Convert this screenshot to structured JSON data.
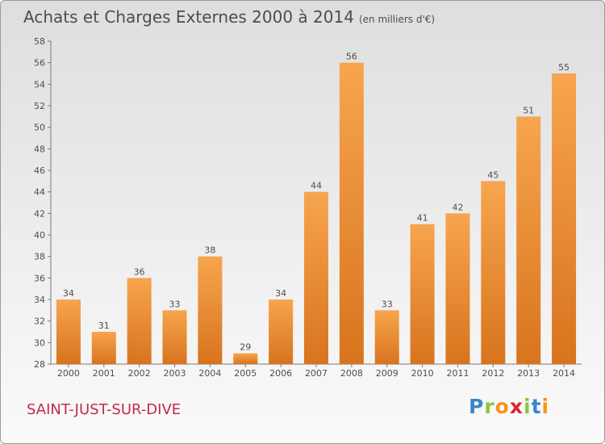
{
  "title": "Achats et Charges Externes 2000 à 2014",
  "subtitle": "(en milliers d'€)",
  "commune": "SAINT-JUST-SUR-DIVE",
  "logo": {
    "letters": [
      "P",
      "r",
      "o",
      "x",
      "i",
      "t",
      "i"
    ],
    "colors": [
      "#3a86c8",
      "#8cc63f",
      "#f7941d",
      "#d9262e",
      "#8cc63f",
      "#3a86c8",
      "#f7941d"
    ]
  },
  "colors": {
    "bar_top": "#f7a54e",
    "bar_bottom": "#d8741e",
    "title": "#4d4d4d",
    "commune": "#c42a4a"
  },
  "chart_data": {
    "type": "bar",
    "categories": [
      "2000",
      "2001",
      "2002",
      "2003",
      "2004",
      "2005",
      "2006",
      "2007",
      "2008",
      "2009",
      "2010",
      "2011",
      "2012",
      "2013",
      "2014"
    ],
    "values": [
      34,
      31,
      36,
      33,
      38,
      29,
      34,
      44,
      56,
      33,
      41,
      42,
      45,
      51,
      55
    ],
    "ylim": [
      28,
      58
    ],
    "yticks": [
      28,
      30,
      32,
      34,
      36,
      38,
      40,
      42,
      44,
      46,
      48,
      50,
      52,
      54,
      56,
      58
    ],
    "grid": false
  }
}
